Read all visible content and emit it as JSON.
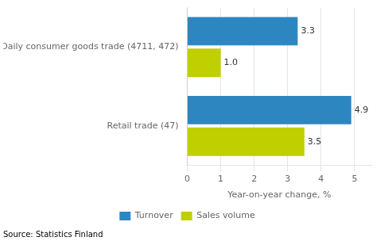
{
  "chart_data": {
    "type": "bar",
    "orientation": "horizontal",
    "categories": [
      "Daily consumer goods trade (4711, 472)",
      "Retail trade (47)"
    ],
    "series": [
      {
        "name": "Turnover",
        "color": "#2E86C1",
        "values": [
          3.3,
          4.9
        ],
        "value_labels": [
          "3.3",
          "4.9"
        ]
      },
      {
        "name": "Sales volume",
        "color": "#BFCF00",
        "values": [
          1.0,
          3.5
        ],
        "value_labels": [
          "1.0",
          "3.5"
        ]
      }
    ],
    "xlabel": "Year-on-year change, %",
    "xlim": [
      0,
      5.5
    ],
    "xticks": [
      0,
      1,
      2,
      3,
      4,
      5
    ],
    "grid": true,
    "data_labels": true,
    "legend": "bottom",
    "annotations": [
      "Source: Statistics Finland"
    ]
  }
}
